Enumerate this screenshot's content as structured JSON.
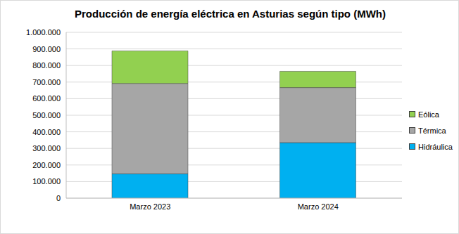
{
  "chart_data": {
    "type": "bar",
    "title": "Producción de energía eléctrica en Asturias según tipo (MWh)",
    "categories": [
      "Marzo 2023",
      "Marzo 2024"
    ],
    "series": [
      {
        "name": "Hidráulica",
        "color": "#00b0f0",
        "values": [
          147000,
          335000
        ]
      },
      {
        "name": "Térmica",
        "color": "#a6a6a6",
        "values": [
          545000,
          332000
        ]
      },
      {
        "name": "Eólica",
        "color": "#92d050",
        "values": [
          196000,
          98000
        ]
      }
    ],
    "stacked": true,
    "ylim": [
      0,
      1000000
    ],
    "yticks": [
      0,
      {
        "value": 100000,
        "label": "100.000"
      },
      {
        "value": 200000,
        "label": "200.000"
      },
      {
        "value": 300000,
        "label": "300.000"
      },
      {
        "value": 400000,
        "label": "400.000"
      },
      {
        "value": 500000,
        "label": "500.000"
      },
      {
        "value": 600000,
        "label": "600.000"
      },
      {
        "value": 700000,
        "label": "700.000"
      },
      {
        "value": 800000,
        "label": "800.000"
      },
      {
        "value": 900000,
        "label": "900.000"
      },
      {
        "value": 1000000,
        "label": "1.000.000"
      }
    ],
    "grid": true,
    "legend": "right"
  }
}
